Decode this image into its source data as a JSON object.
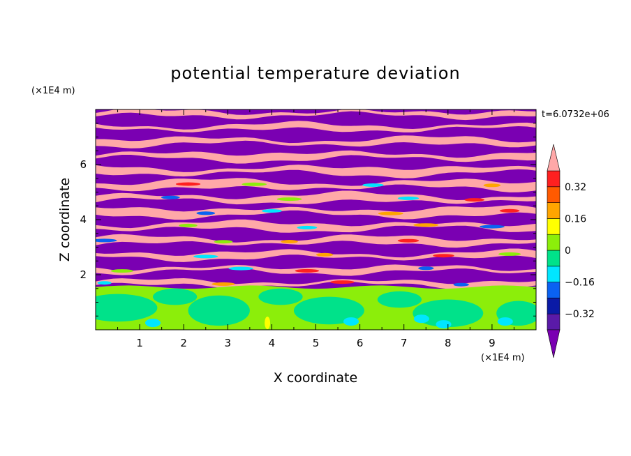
{
  "chart_data": {
    "type": "heatmap",
    "title": "potential temperature deviation",
    "xlabel": "X coordinate",
    "ylabel": "Z coordinate",
    "x_unit": "(×1E4 m)",
    "y_unit": "(×1E4 m)",
    "time_label": "t=6.0732e+06",
    "xlim": [
      0,
      10
    ],
    "ylim": [
      0,
      8
    ],
    "x_ticks": [
      "1",
      "2",
      "3",
      "4",
      "5",
      "6",
      "7",
      "8",
      "9"
    ],
    "y_ticks": [
      "2",
      "4",
      "6"
    ],
    "colorbar": {
      "levels": [
        -0.4,
        -0.32,
        -0.24,
        -0.16,
        -0.08,
        0,
        0.08,
        0.16,
        0.24,
        0.32,
        0.4
      ],
      "colors": [
        "#7a00b2",
        "#5a1aa8",
        "#0a1aa6",
        "#0a62f2",
        "#00e6ff",
        "#00e28a",
        "#8cee0a",
        "#ffff00",
        "#ffa500",
        "#ff5a00",
        "#ff2020",
        "#ffa8a8"
      ],
      "tick_labels": [
        "0.32",
        "0.16",
        "0",
        "−0.16",
        "−0.32"
      ],
      "tick_values": [
        0.32,
        0.16,
        0,
        -0.16,
        -0.32
      ]
    },
    "field_description": {
      "lower_layer_z_range": [
        0,
        1.6
      ],
      "lower_layer_range": [
        -0.16,
        0.08
      ],
      "upper_layer_z_range": [
        1.6,
        8
      ],
      "upper_layer_pattern": "alternating horizontal bands between below -0.4 and above 0.4"
    }
  }
}
